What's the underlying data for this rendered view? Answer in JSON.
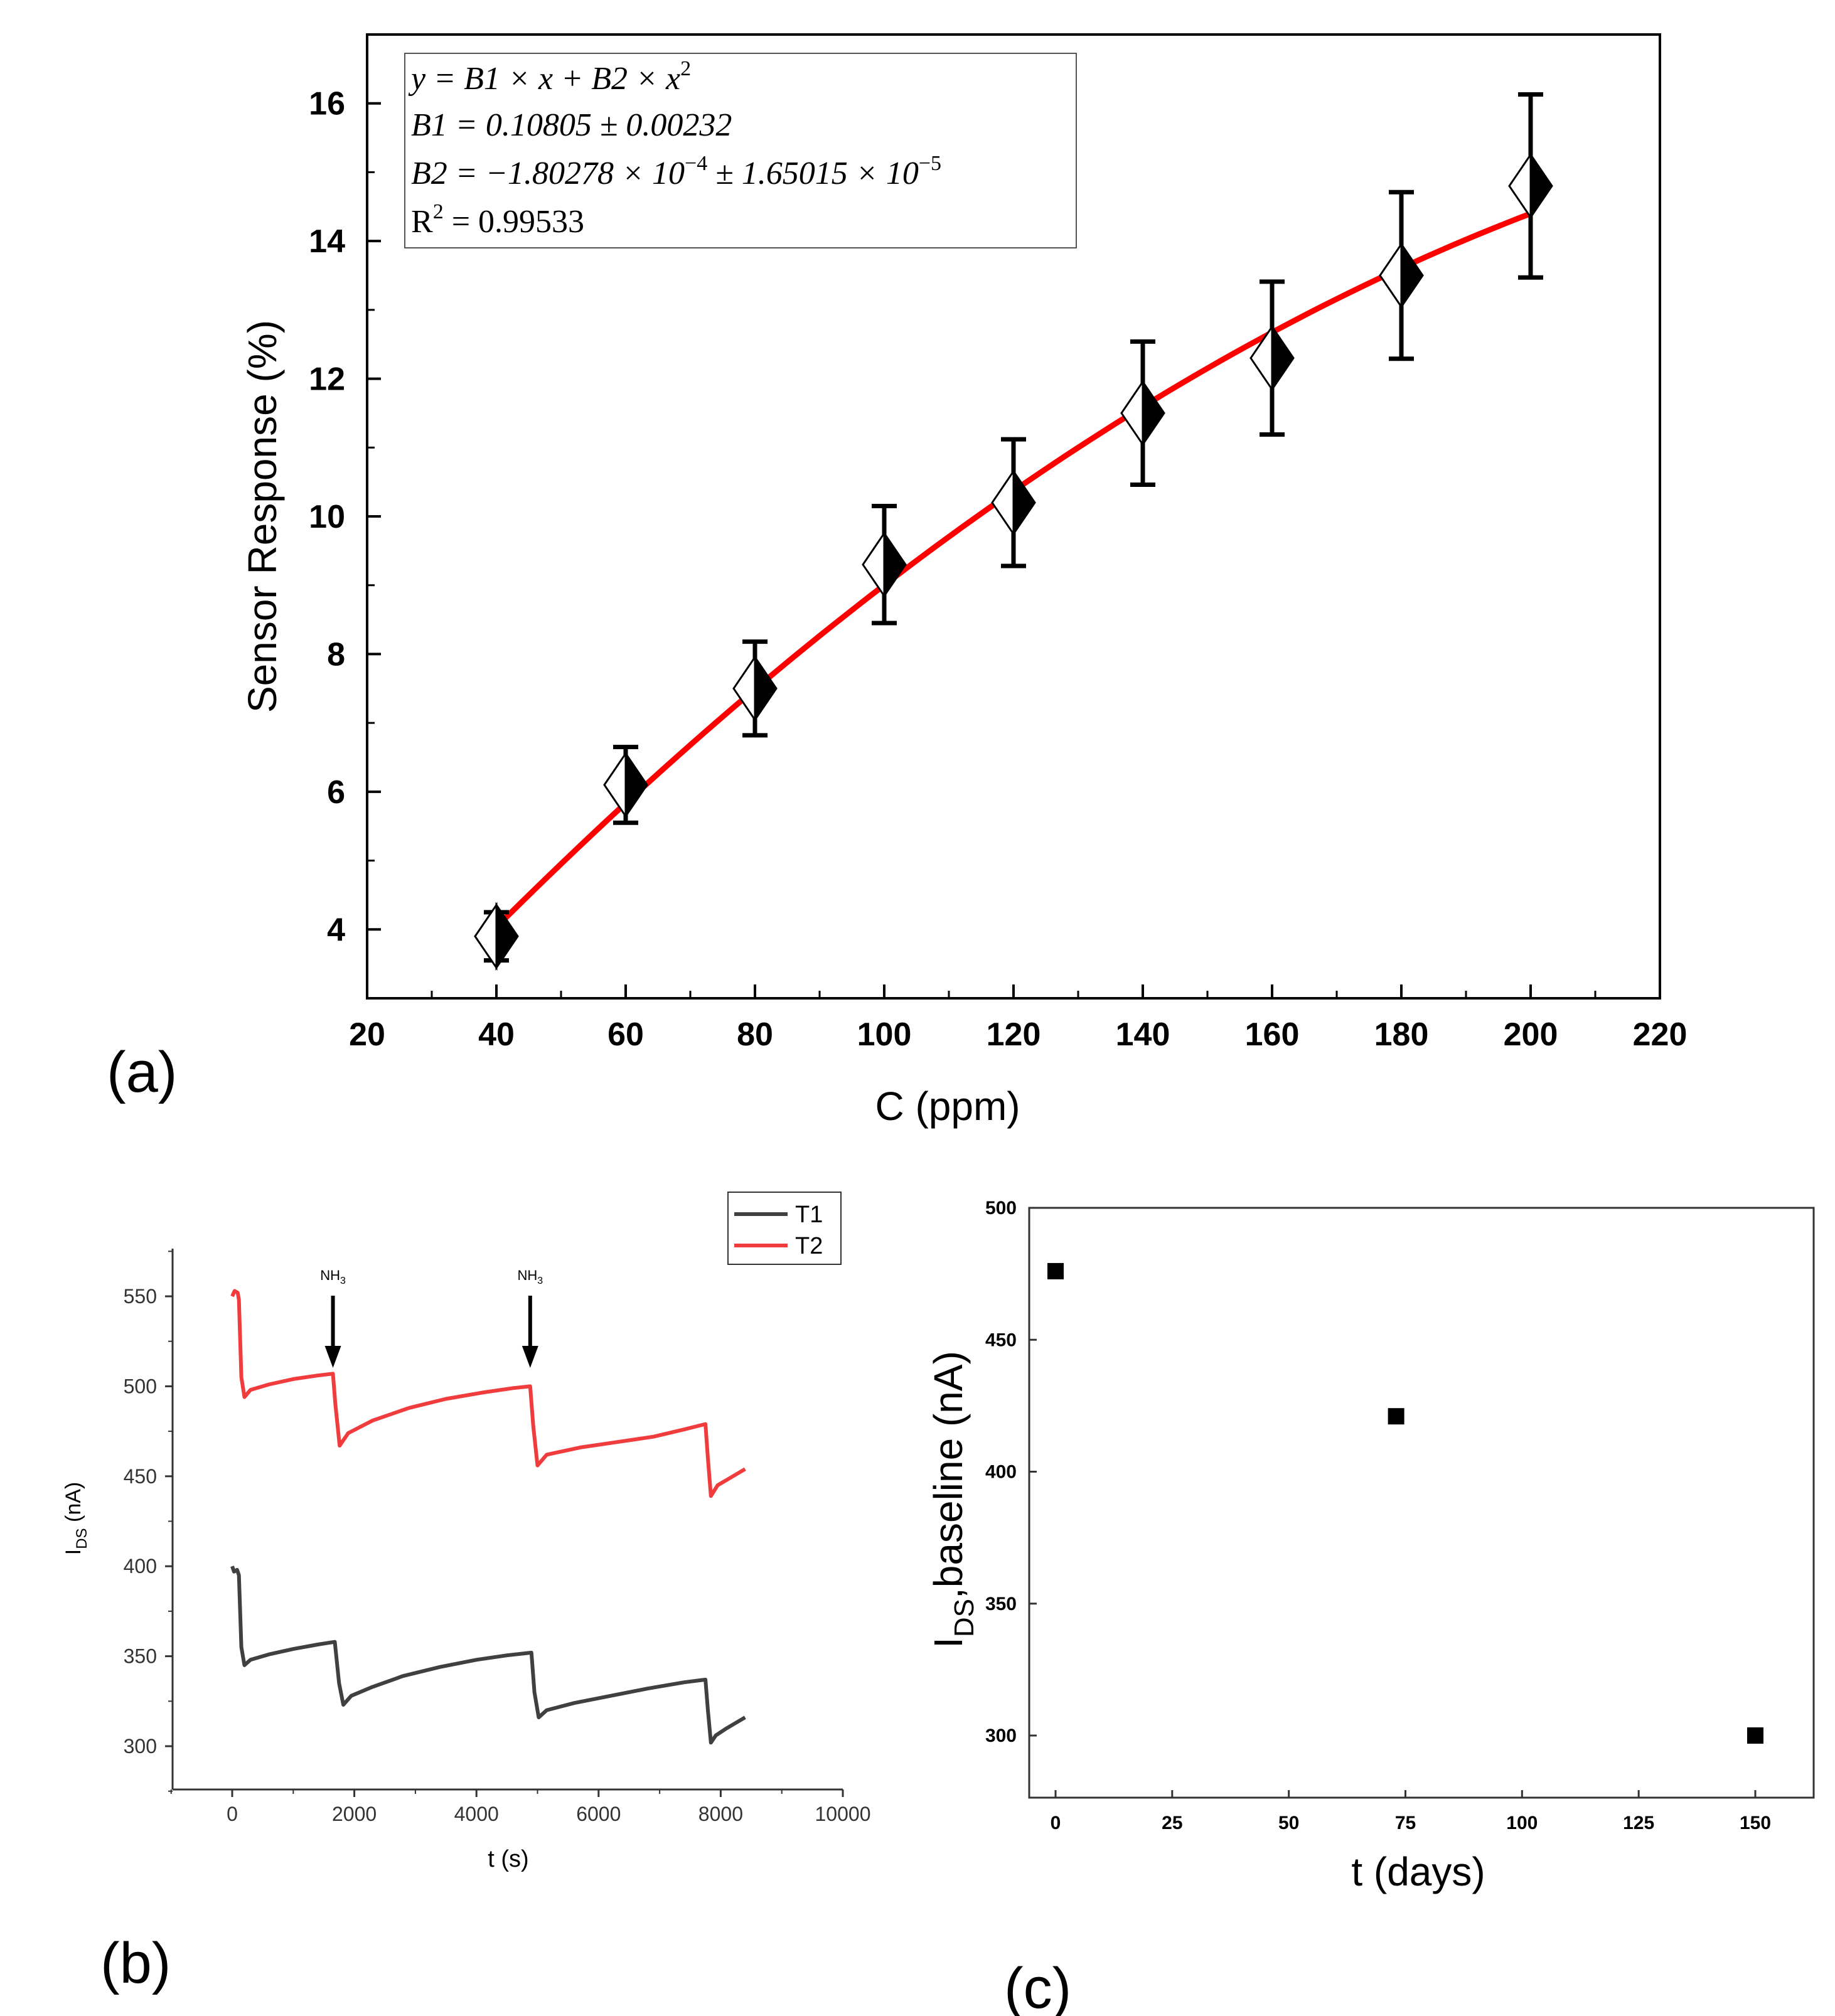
{
  "figure": {
    "panel_labels": [
      "(a)",
      "(b)",
      "(c)"
    ]
  },
  "chart_data": [
    {
      "id": "a",
      "type": "scatter",
      "xlabel": "C  (ppm)",
      "ylabel": "Sensor  Response  (%)",
      "xlim": [
        20,
        220
      ],
      "ylim": [
        3,
        17
      ],
      "xticks": [
        20,
        40,
        60,
        80,
        100,
        120,
        140,
        160,
        180,
        200,
        220
      ],
      "yticks": [
        4,
        6,
        8,
        10,
        12,
        14,
        16
      ],
      "points": [
        {
          "x": 40,
          "y": 3.9,
          "yerr_low": 3.55,
          "yerr_high": 4.25
        },
        {
          "x": 60,
          "y": 6.1,
          "yerr_low": 5.55,
          "yerr_high": 6.65
        },
        {
          "x": 80,
          "y": 7.5,
          "yerr_low": 6.82,
          "yerr_high": 8.18
        },
        {
          "x": 100,
          "y": 9.3,
          "yerr_low": 8.45,
          "yerr_high": 10.15
        },
        {
          "x": 120,
          "y": 10.2,
          "yerr_low": 9.28,
          "yerr_high": 11.12
        },
        {
          "x": 140,
          "y": 11.5,
          "yerr_low": 10.46,
          "yerr_high": 12.54
        },
        {
          "x": 160,
          "y": 12.3,
          "yerr_low": 11.19,
          "yerr_high": 13.41
        },
        {
          "x": 180,
          "y": 13.5,
          "yerr_low": 12.29,
          "yerr_high": 14.71
        },
        {
          "x": 200,
          "y": 14.8,
          "yerr_low": 13.47,
          "yerr_high": 16.13
        }
      ],
      "fit": {
        "B1": 0.10805,
        "B2": -0.000180278,
        "x_range": [
          40,
          200
        ],
        "color": "#ff0000"
      },
      "annotation": {
        "line1": "y = B1 × x + B2 × x",
        "line1_sup": "2",
        "line2": "B1 = 0.10805 ± 0.00232",
        "line3a": "B2 = −1.80278 × 10",
        "line3a_sup": "−4",
        "line3b": " ± 1.65015 × 10",
        "line3b_sup": "−5",
        "line4a": "R",
        "line4a_sup": "2",
        "line4b": " = 0.99533"
      }
    },
    {
      "id": "b",
      "type": "line",
      "xlabel": "t (s)",
      "ylabel_main": "I",
      "ylabel_sub": "DS",
      "ylabel_tail": " (nA)",
      "xlim": [
        -1000,
        10000
      ],
      "ylim": [
        275,
        575
      ],
      "xticks": [
        0,
        2000,
        4000,
        6000,
        8000,
        10000
      ],
      "yticks": [
        300,
        350,
        400,
        450,
        500,
        550
      ],
      "legend": [
        {
          "name": "T1",
          "color": "#404040"
        },
        {
          "name": "T2",
          "color": "#f03c3c"
        }
      ],
      "arrows": [
        {
          "x": 1650,
          "label": "NH",
          "sub": "3"
        },
        {
          "x": 4880,
          "label": "NH",
          "sub": "3"
        }
      ],
      "series": [
        {
          "name": "T1",
          "color": "#404040",
          "points": [
            [
              0,
              400
            ],
            [
              30,
              397
            ],
            [
              80,
              398
            ],
            [
              110,
              395
            ],
            [
              150,
              355
            ],
            [
              200,
              345
            ],
            [
              300,
              348
            ],
            [
              600,
              351
            ],
            [
              1000,
              354
            ],
            [
              1400,
              356.5
            ],
            [
              1680,
              358
            ],
            [
              1750,
              335
            ],
            [
              1820,
              323
            ],
            [
              1950,
              328
            ],
            [
              2300,
              333
            ],
            [
              2800,
              339
            ],
            [
              3400,
              344
            ],
            [
              4000,
              348
            ],
            [
              4500,
              350.5
            ],
            [
              4900,
              352
            ],
            [
              4950,
              330
            ],
            [
              5020,
              316
            ],
            [
              5150,
              320
            ],
            [
              5600,
              324
            ],
            [
              6200,
              328
            ],
            [
              6800,
              332
            ],
            [
              7400,
              335.5
            ],
            [
              7750,
              337
            ],
            [
              7790,
              320
            ],
            [
              7840,
              302
            ],
            [
              7920,
              306
            ],
            [
              8100,
              310
            ],
            [
              8300,
              314
            ],
            [
              8400,
              316
            ]
          ]
        },
        {
          "name": "T2",
          "color": "#f03c3c",
          "points": [
            [
              0,
              550
            ],
            [
              40,
              553
            ],
            [
              90,
              552
            ],
            [
              110,
              548
            ],
            [
              150,
              505
            ],
            [
              200,
              494
            ],
            [
              300,
              498
            ],
            [
              600,
              501
            ],
            [
              1000,
              504
            ],
            [
              1400,
              506
            ],
            [
              1650,
              507
            ],
            [
              1690,
              490
            ],
            [
              1760,
              467
            ],
            [
              1900,
              474
            ],
            [
              2300,
              481
            ],
            [
              2900,
              488
            ],
            [
              3500,
              493
            ],
            [
              4100,
              496.5
            ],
            [
              4600,
              499
            ],
            [
              4880,
              500
            ],
            [
              4930,
              478
            ],
            [
              5000,
              456
            ],
            [
              5150,
              462
            ],
            [
              5700,
              466
            ],
            [
              6300,
              469
            ],
            [
              6900,
              472
            ],
            [
              7400,
              476
            ],
            [
              7750,
              479
            ],
            [
              7790,
              460
            ],
            [
              7840,
              439
            ],
            [
              7950,
              445
            ],
            [
              8150,
              449
            ],
            [
              8400,
              454
            ]
          ]
        }
      ]
    },
    {
      "id": "c",
      "type": "scatter",
      "xlabel": "t (days)",
      "ylabel_main": "I",
      "ylabel_sub": "DS",
      "ylabel_tail": ",baseline (nA)",
      "xlim": [
        -8,
        160
      ],
      "ylim": [
        276,
        500
      ],
      "xticks": [
        0,
        25,
        50,
        75,
        100,
        125,
        150
      ],
      "yticks": [
        300,
        350,
        400,
        450,
        500
      ],
      "points": [
        {
          "x": 0,
          "y": 476
        },
        {
          "x": 73,
          "y": 421
        },
        {
          "x": 150,
          "y": 300
        }
      ]
    }
  ]
}
